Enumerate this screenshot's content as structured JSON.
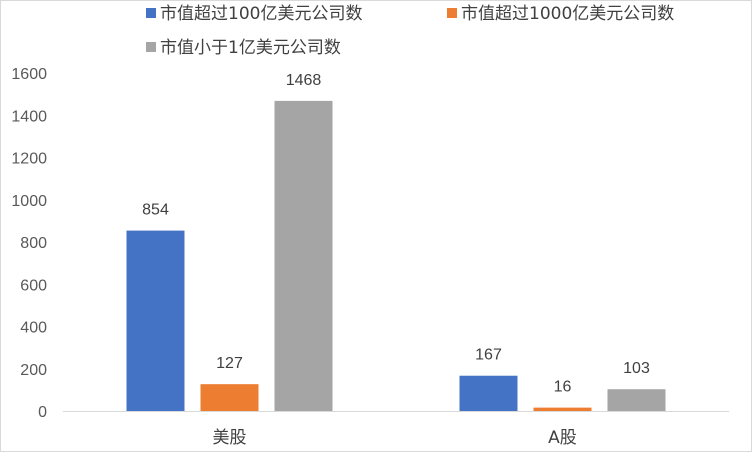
{
  "chart_data": {
    "type": "bar",
    "categories": [
      "美股",
      "A股"
    ],
    "series": [
      {
        "name": "市值超过100亿美元公司数",
        "values": [
          854,
          167
        ],
        "color": "#4472C4"
      },
      {
        "name": "市值超过1000亿美元公司数",
        "values": [
          127,
          16
        ],
        "color": "#ED7D31"
      },
      {
        "name": "市值小于1亿美元公司数",
        "values": [
          1468,
          103
        ],
        "color": "#A5A5A5"
      }
    ],
    "ylim": [
      0,
      1600
    ],
    "yticks": [
      0,
      200,
      400,
      600,
      800,
      1000,
      1200,
      1400,
      1600
    ],
    "grid": false,
    "legend": "top",
    "title": "",
    "xlabel": "",
    "ylabel": ""
  }
}
